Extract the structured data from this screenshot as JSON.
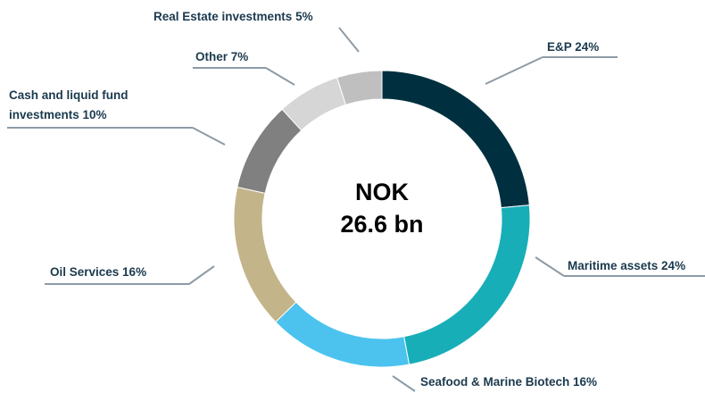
{
  "chart_data": {
    "type": "pie",
    "donut": true,
    "values": [
      24,
      24,
      16,
      16,
      10,
      7,
      5
    ],
    "value_labels": [
      "E&P 24%",
      "Maritime assets 24%",
      "Seafood & Marine Biotech 16%",
      "Oil Services 16%",
      "Cash and liquid fund investments 10%",
      "Other 7%",
      "Real Estate investments 5%"
    ],
    "colors": [
      "#00303f",
      "#17aeb8",
      "#4cc3ef",
      "#c4b48a",
      "#808080",
      "#d6d6d6",
      "#bfbfbf"
    ],
    "center_text": [
      "NOK",
      "26.6 bn"
    ]
  }
}
